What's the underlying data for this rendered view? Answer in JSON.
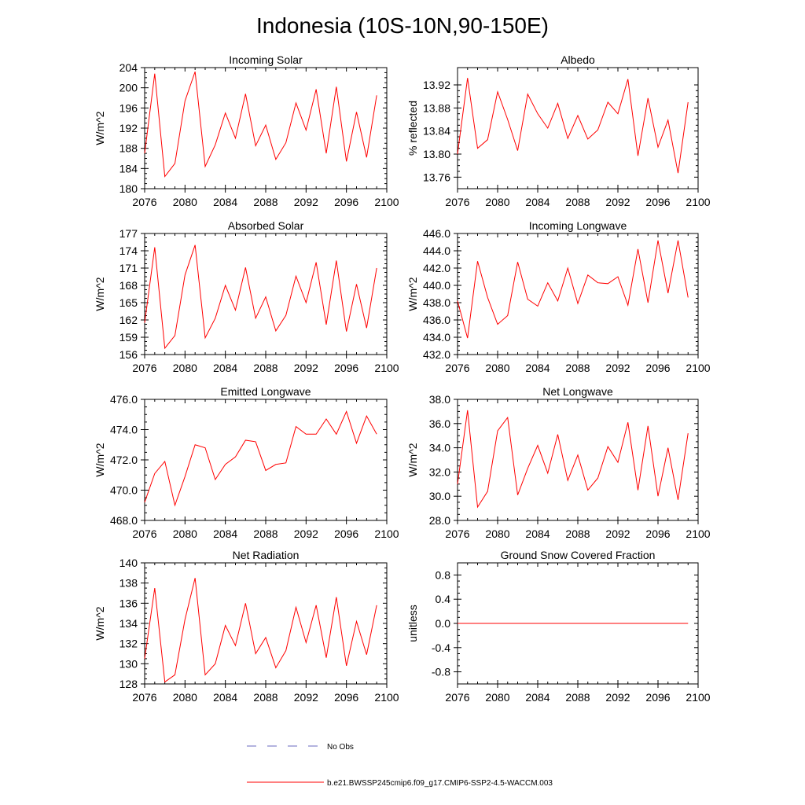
{
  "figure": {
    "title": "Indonesia (10S-10N,90-150E)"
  },
  "legend": {
    "obs_label": "No Obs",
    "obs_color": "#6a6abf",
    "model_label": "b.e21.BWSSP245cmip6.f09_g17.CMIP6-SSP2-4.5-WACCM.003",
    "model_color": "#ff0000"
  },
  "chart_data": [
    {
      "id": "incoming-solar",
      "type": "line",
      "title": "Incoming Solar",
      "ylabel": "W/m^2",
      "xlim": [
        2076,
        2100
      ],
      "ylim": [
        180,
        204
      ],
      "xticks": [
        2076,
        2080,
        2084,
        2088,
        2092,
        2096,
        2100
      ],
      "yticks": [
        180,
        184,
        188,
        192,
        196,
        200,
        204
      ],
      "ytick_labels": [
        "180",
        "184",
        "188",
        "192",
        "196",
        "200",
        "204"
      ],
      "x": [
        2076,
        2077,
        2078,
        2079,
        2080,
        2081,
        2082,
        2083,
        2084,
        2085,
        2086,
        2087,
        2088,
        2089,
        2090,
        2091,
        2092,
        2093,
        2094,
        2095,
        2096,
        2097,
        2098,
        2099
      ],
      "series": [
        {
          "name": "b.e21.BWSSP245cmip6.f09_g17.CMIP6-SSP2-4.5-WACCM.003",
          "values": [
            187.0,
            202.8,
            182.4,
            185.0,
            197.4,
            203.2,
            184.4,
            188.7,
            195.0,
            190.0,
            198.8,
            188.5,
            192.6,
            185.8,
            189.1,
            197.0,
            191.6,
            199.7,
            187.0,
            200.2,
            185.4,
            195.2,
            186.2,
            198.5
          ]
        }
      ]
    },
    {
      "id": "albedo",
      "type": "line",
      "title": "Albedo",
      "ylabel": "% reflected",
      "xlim": [
        2076,
        2100
      ],
      "ylim": [
        13.74,
        13.95
      ],
      "xticks": [
        2076,
        2080,
        2084,
        2088,
        2092,
        2096,
        2100
      ],
      "yticks": [
        13.76,
        13.8,
        13.84,
        13.88,
        13.92
      ],
      "ytick_labels": [
        "13.76",
        "13.80",
        "13.84",
        "13.88",
        "13.92"
      ],
      "x": [
        2076,
        2077,
        2078,
        2079,
        2080,
        2081,
        2082,
        2083,
        2084,
        2085,
        2086,
        2087,
        2088,
        2089,
        2090,
        2091,
        2092,
        2093,
        2094,
        2095,
        2096,
        2097,
        2098,
        2099
      ],
      "series": [
        {
          "name": "b.e21.BWSSP245cmip6.f09_g17.CMIP6-SSP2-4.5-WACCM.003",
          "values": [
            13.8,
            13.932,
            13.81,
            13.825,
            13.908,
            13.86,
            13.806,
            13.904,
            13.87,
            13.845,
            13.888,
            13.827,
            13.867,
            13.826,
            13.842,
            13.89,
            13.87,
            13.93,
            13.797,
            13.897,
            13.812,
            13.859,
            13.767,
            13.89
          ]
        }
      ]
    },
    {
      "id": "absorbed-solar",
      "type": "line",
      "title": "Absorbed Solar",
      "ylabel": "W/m^2",
      "xlim": [
        2076,
        2100
      ],
      "ylim": [
        156,
        177
      ],
      "xticks": [
        2076,
        2080,
        2084,
        2088,
        2092,
        2096,
        2100
      ],
      "yticks": [
        156,
        159,
        162,
        165,
        168,
        171,
        174,
        177
      ],
      "ytick_labels": [
        "156",
        "159",
        "162",
        "165",
        "168",
        "171",
        "174",
        "177"
      ],
      "x": [
        2076,
        2077,
        2078,
        2079,
        2080,
        2081,
        2082,
        2083,
        2084,
        2085,
        2086,
        2087,
        2088,
        2089,
        2090,
        2091,
        2092,
        2093,
        2094,
        2095,
        2096,
        2097,
        2098,
        2099
      ],
      "series": [
        {
          "name": "b.e21.BWSSP245cmip6.f09_g17.CMIP6-SSP2-4.5-WACCM.003",
          "values": [
            161.5,
            174.6,
            157.1,
            159.3,
            169.8,
            175.0,
            158.9,
            162.3,
            168.0,
            163.7,
            171.1,
            162.3,
            166.0,
            160.1,
            162.8,
            169.6,
            165.0,
            172.0,
            161.2,
            172.3,
            160.0,
            168.2,
            160.6,
            171.0
          ]
        }
      ]
    },
    {
      "id": "incoming-longwave",
      "type": "line",
      "title": "Incoming Longwave",
      "ylabel": "W/m^2",
      "xlim": [
        2076,
        2100
      ],
      "ylim": [
        432,
        446
      ],
      "xticks": [
        2076,
        2080,
        2084,
        2088,
        2092,
        2096,
        2100
      ],
      "yticks": [
        432,
        434,
        436,
        438,
        440,
        442,
        444,
        446
      ],
      "ytick_labels": [
        "432.0",
        "434.0",
        "436.0",
        "438.0",
        "440.0",
        "442.0",
        "444.0",
        "446.0"
      ],
      "x": [
        2076,
        2077,
        2078,
        2079,
        2080,
        2081,
        2082,
        2083,
        2084,
        2085,
        2086,
        2087,
        2088,
        2089,
        2090,
        2091,
        2092,
        2093,
        2094,
        2095,
        2096,
        2097,
        2098,
        2099
      ],
      "series": [
        {
          "name": "b.e21.BWSSP245cmip6.f09_g17.CMIP6-SSP2-4.5-WACCM.003",
          "values": [
            438.2,
            433.9,
            442.8,
            438.6,
            435.5,
            436.5,
            442.7,
            438.4,
            437.6,
            440.3,
            438.2,
            442.0,
            437.9,
            441.2,
            440.3,
            440.2,
            441.0,
            437.7,
            444.2,
            438.0,
            445.2,
            439.1,
            445.2,
            438.6
          ]
        }
      ]
    },
    {
      "id": "emitted-longwave",
      "type": "line",
      "title": "Emitted Longwave",
      "ylabel": "W/m^2",
      "xlim": [
        2076,
        2100
      ],
      "ylim": [
        468,
        476
      ],
      "xticks": [
        2076,
        2080,
        2084,
        2088,
        2092,
        2096,
        2100
      ],
      "yticks": [
        468,
        470,
        472,
        474,
        476
      ],
      "ytick_labels": [
        "468.0",
        "470.0",
        "472.0",
        "474.0",
        "476.0"
      ],
      "x": [
        2076,
        2077,
        2078,
        2079,
        2080,
        2081,
        2082,
        2083,
        2084,
        2085,
        2086,
        2087,
        2088,
        2089,
        2090,
        2091,
        2092,
        2093,
        2094,
        2095,
        2096,
        2097,
        2098,
        2099
      ],
      "series": [
        {
          "name": "b.e21.BWSSP245cmip6.f09_g17.CMIP6-SSP2-4.5-WACCM.003",
          "values": [
            469.2,
            471.1,
            471.9,
            469.0,
            470.9,
            473.0,
            472.8,
            470.7,
            471.7,
            472.2,
            473.3,
            473.2,
            471.3,
            471.7,
            471.8,
            474.2,
            473.7,
            473.7,
            474.7,
            473.7,
            475.2,
            473.1,
            474.9,
            473.7
          ]
        }
      ]
    },
    {
      "id": "net-longwave",
      "type": "line",
      "title": "Net Longwave",
      "ylabel": "W/m^2",
      "xlim": [
        2076,
        2100
      ],
      "ylim": [
        28,
        38
      ],
      "xticks": [
        2076,
        2080,
        2084,
        2088,
        2092,
        2096,
        2100
      ],
      "yticks": [
        28,
        30,
        32,
        34,
        36,
        38
      ],
      "ytick_labels": [
        "28.0",
        "30.0",
        "32.0",
        "34.0",
        "36.0",
        "38.0"
      ],
      "x": [
        2076,
        2077,
        2078,
        2079,
        2080,
        2081,
        2082,
        2083,
        2084,
        2085,
        2086,
        2087,
        2088,
        2089,
        2090,
        2091,
        2092,
        2093,
        2094,
        2095,
        2096,
        2097,
        2098,
        2099
      ],
      "series": [
        {
          "name": "b.e21.BWSSP245cmip6.f09_g17.CMIP6-SSP2-4.5-WACCM.003",
          "values": [
            31.0,
            37.1,
            29.1,
            30.4,
            35.4,
            36.5,
            30.1,
            32.3,
            34.2,
            31.9,
            35.1,
            31.3,
            33.4,
            30.5,
            31.5,
            34.1,
            32.8,
            36.1,
            30.5,
            35.8,
            30.0,
            34.0,
            29.7,
            35.2
          ]
        }
      ]
    },
    {
      "id": "net-radiation",
      "type": "line",
      "title": "Net Radiation",
      "ylabel": "W/m^2",
      "xlim": [
        2076,
        2100
      ],
      "ylim": [
        128,
        140
      ],
      "xticks": [
        2076,
        2080,
        2084,
        2088,
        2092,
        2096,
        2100
      ],
      "yticks": [
        128,
        130,
        132,
        134,
        136,
        138,
        140
      ],
      "ytick_labels": [
        "128",
        "130",
        "132",
        "134",
        "136",
        "138",
        "140"
      ],
      "x": [
        2076,
        2077,
        2078,
        2079,
        2080,
        2081,
        2082,
        2083,
        2084,
        2085,
        2086,
        2087,
        2088,
        2089,
        2090,
        2091,
        2092,
        2093,
        2094,
        2095,
        2096,
        2097,
        2098,
        2099
      ],
      "series": [
        {
          "name": "b.e21.BWSSP245cmip6.f09_g17.CMIP6-SSP2-4.5-WACCM.003",
          "values": [
            130.5,
            137.5,
            128.2,
            128.9,
            134.4,
            138.5,
            128.9,
            130.0,
            133.8,
            131.8,
            136.0,
            131.0,
            132.6,
            129.6,
            131.3,
            135.6,
            132.1,
            135.8,
            130.6,
            136.6,
            129.8,
            134.2,
            130.9,
            135.8
          ]
        }
      ]
    },
    {
      "id": "ground-snow",
      "type": "line",
      "title": "Ground Snow Covered Fraction",
      "ylabel": "unitless",
      "xlim": [
        2076,
        2100
      ],
      "ylim": [
        -1.0,
        1.0
      ],
      "xticks": [
        2076,
        2080,
        2084,
        2088,
        2092,
        2096,
        2100
      ],
      "yticks": [
        -0.8,
        -0.4,
        0.0,
        0.4,
        0.8
      ],
      "ytick_labels": [
        "-0.8",
        "-0.4",
        "0.0",
        "0.4",
        "0.8"
      ],
      "x": [
        2076,
        2077,
        2078,
        2079,
        2080,
        2081,
        2082,
        2083,
        2084,
        2085,
        2086,
        2087,
        2088,
        2089,
        2090,
        2091,
        2092,
        2093,
        2094,
        2095,
        2096,
        2097,
        2098,
        2099
      ],
      "series": [
        {
          "name": "b.e21.BWSSP245cmip6.f09_g17.CMIP6-SSP2-4.5-WACCM.003",
          "values": [
            0,
            0,
            0,
            0,
            0,
            0,
            0,
            0,
            0,
            0,
            0,
            0,
            0,
            0,
            0,
            0,
            0,
            0,
            0,
            0,
            0,
            0,
            0,
            0
          ]
        }
      ]
    }
  ]
}
